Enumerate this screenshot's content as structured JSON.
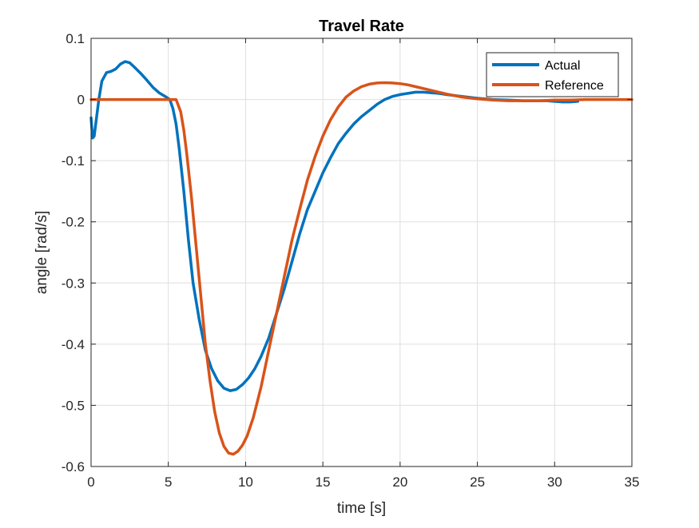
{
  "chart_data": {
    "type": "line",
    "title": "Travel Rate",
    "xlabel": "time [s]",
    "ylabel": "angle [rad/s]",
    "xlim": [
      0,
      35
    ],
    "ylim": [
      -0.6,
      0.1
    ],
    "x_ticks": [
      0,
      5,
      10,
      15,
      20,
      25,
      30,
      35
    ],
    "y_ticks": [
      0.1,
      0,
      -0.1,
      -0.2,
      -0.3,
      -0.4,
      -0.5,
      -0.6
    ],
    "x_tick_labels": [
      "0",
      "5",
      "10",
      "15",
      "20",
      "25",
      "30",
      "35"
    ],
    "y_tick_labels": [
      "0.1",
      "0",
      "-0.1",
      "-0.2",
      "-0.3",
      "-0.4",
      "-0.5",
      "-0.6"
    ],
    "grid": true,
    "legend_position": "top-right",
    "series": [
      {
        "name": "Actual",
        "color": "#0072BD",
        "x": [
          0,
          0.1,
          0.2,
          0.35,
          0.5,
          0.7,
          1.0,
          1.3,
          1.6,
          1.9,
          2.2,
          2.5,
          2.8,
          3.2,
          3.6,
          4.0,
          4.4,
          4.8,
          5.1,
          5.3,
          5.5,
          5.7,
          6.0,
          6.3,
          6.6,
          7.0,
          7.4,
          7.8,
          8.2,
          8.6,
          9.0,
          9.4,
          9.8,
          10.2,
          10.6,
          11.0,
          11.5,
          12.0,
          12.5,
          13.0,
          13.5,
          14.0,
          14.5,
          15.0,
          15.5,
          16.0,
          16.5,
          17.0,
          17.5,
          18.0,
          18.5,
          19.0,
          19.5,
          20.0,
          20.5,
          21.0,
          21.5,
          22.0,
          22.5,
          23.0,
          24.0,
          25.0,
          26.0,
          27.0,
          28.0,
          29.0,
          29.5,
          30.0,
          30.5,
          31.0,
          31.5
        ],
        "y": [
          -0.03,
          -0.063,
          -0.06,
          -0.03,
          0.0,
          0.03,
          0.044,
          0.046,
          0.05,
          0.058,
          0.062,
          0.06,
          0.053,
          0.043,
          0.032,
          0.02,
          0.011,
          0.005,
          0.0,
          -0.015,
          -0.04,
          -0.08,
          -0.15,
          -0.23,
          -0.3,
          -0.36,
          -0.41,
          -0.44,
          -0.46,
          -0.472,
          -0.476,
          -0.474,
          -0.466,
          -0.455,
          -0.44,
          -0.42,
          -0.39,
          -0.35,
          -0.31,
          -0.265,
          -0.22,
          -0.18,
          -0.15,
          -0.12,
          -0.095,
          -0.072,
          -0.055,
          -0.04,
          -0.028,
          -0.018,
          -0.008,
          0.0,
          0.005,
          0.008,
          0.01,
          0.012,
          0.012,
          0.011,
          0.01,
          0.008,
          0.005,
          0.002,
          0.0,
          -0.001,
          -0.002,
          -0.002,
          -0.002,
          -0.003,
          -0.004,
          -0.004,
          -0.003
        ]
      },
      {
        "name": "Reference",
        "color": "#D95319",
        "x": [
          0,
          1,
          2,
          3,
          4,
          5,
          5.5,
          5.8,
          6.0,
          6.2,
          6.5,
          6.8,
          7.1,
          7.4,
          7.7,
          8.0,
          8.3,
          8.6,
          8.9,
          9.2,
          9.5,
          9.8,
          10.1,
          10.5,
          11.0,
          11.5,
          12.0,
          12.5,
          13.0,
          13.5,
          14.0,
          14.5,
          15.0,
          15.5,
          16.0,
          16.5,
          17.0,
          17.5,
          18.0,
          18.5,
          19.0,
          19.5,
          20.0,
          20.5,
          21.0,
          22.0,
          23.0,
          24.0,
          25.0,
          26.0,
          27.0,
          28.0,
          29.0,
          30.0,
          31.0,
          32.0,
          33.0,
          34.0,
          35.0
        ],
        "y": [
          0,
          0,
          0,
          0,
          0,
          0,
          0,
          -0.02,
          -0.05,
          -0.09,
          -0.16,
          -0.24,
          -0.32,
          -0.4,
          -0.46,
          -0.51,
          -0.545,
          -0.567,
          -0.578,
          -0.58,
          -0.575,
          -0.565,
          -0.55,
          -0.52,
          -0.47,
          -0.41,
          -0.35,
          -0.29,
          -0.23,
          -0.18,
          -0.132,
          -0.093,
          -0.06,
          -0.033,
          -0.012,
          0.004,
          0.014,
          0.021,
          0.025,
          0.027,
          0.0275,
          0.027,
          0.026,
          0.024,
          0.021,
          0.015,
          0.009,
          0.004,
          0.001,
          -0.001,
          -0.002,
          -0.002,
          -0.002,
          -0.001,
          -0.001,
          0,
          0,
          0,
          0
        ]
      }
    ]
  }
}
